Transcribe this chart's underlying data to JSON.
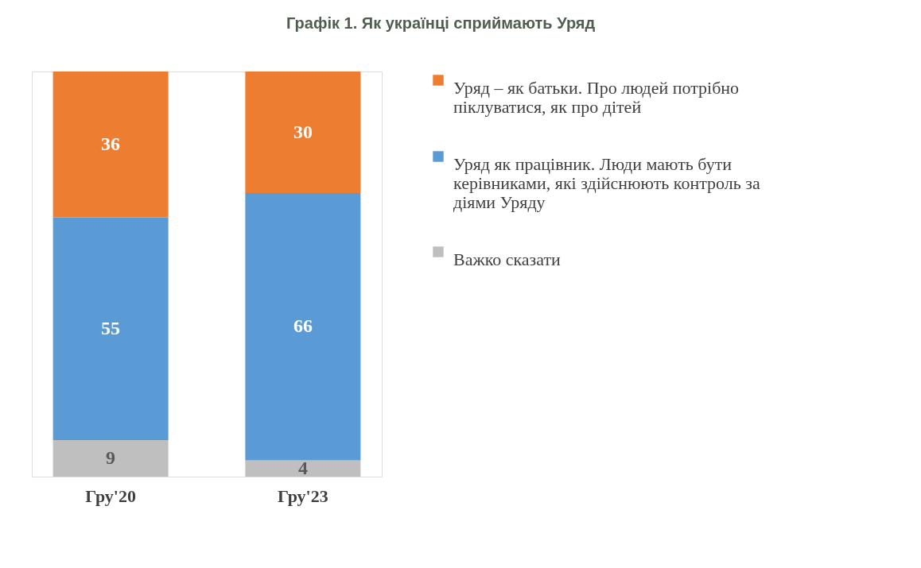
{
  "chart_data": {
    "type": "bar",
    "title": "Графік 1. Як українці сприймають Уряд",
    "categories": [
      "Гру'20",
      "Гру'23"
    ],
    "stacked": true,
    "data_labels": true,
    "legend": "right",
    "tick_labels": "x",
    "series": [
      {
        "name": "Важко сказати",
        "color": "#bfbfbf",
        "values": [
          9,
          4
        ]
      },
      {
        "name": "Уряд як працівник. Люди мають бути\nкерівниками, які здійснюють контроль за\nдіями Уряду",
        "color": "#5b9bd5",
        "values": [
          55,
          66
        ]
      },
      {
        "name": "Уряд – як батьки. Про людей потрібно\nпіклуватися, як про дітей",
        "color": "#ed7d31",
        "values": [
          36,
          30
        ]
      }
    ]
  }
}
